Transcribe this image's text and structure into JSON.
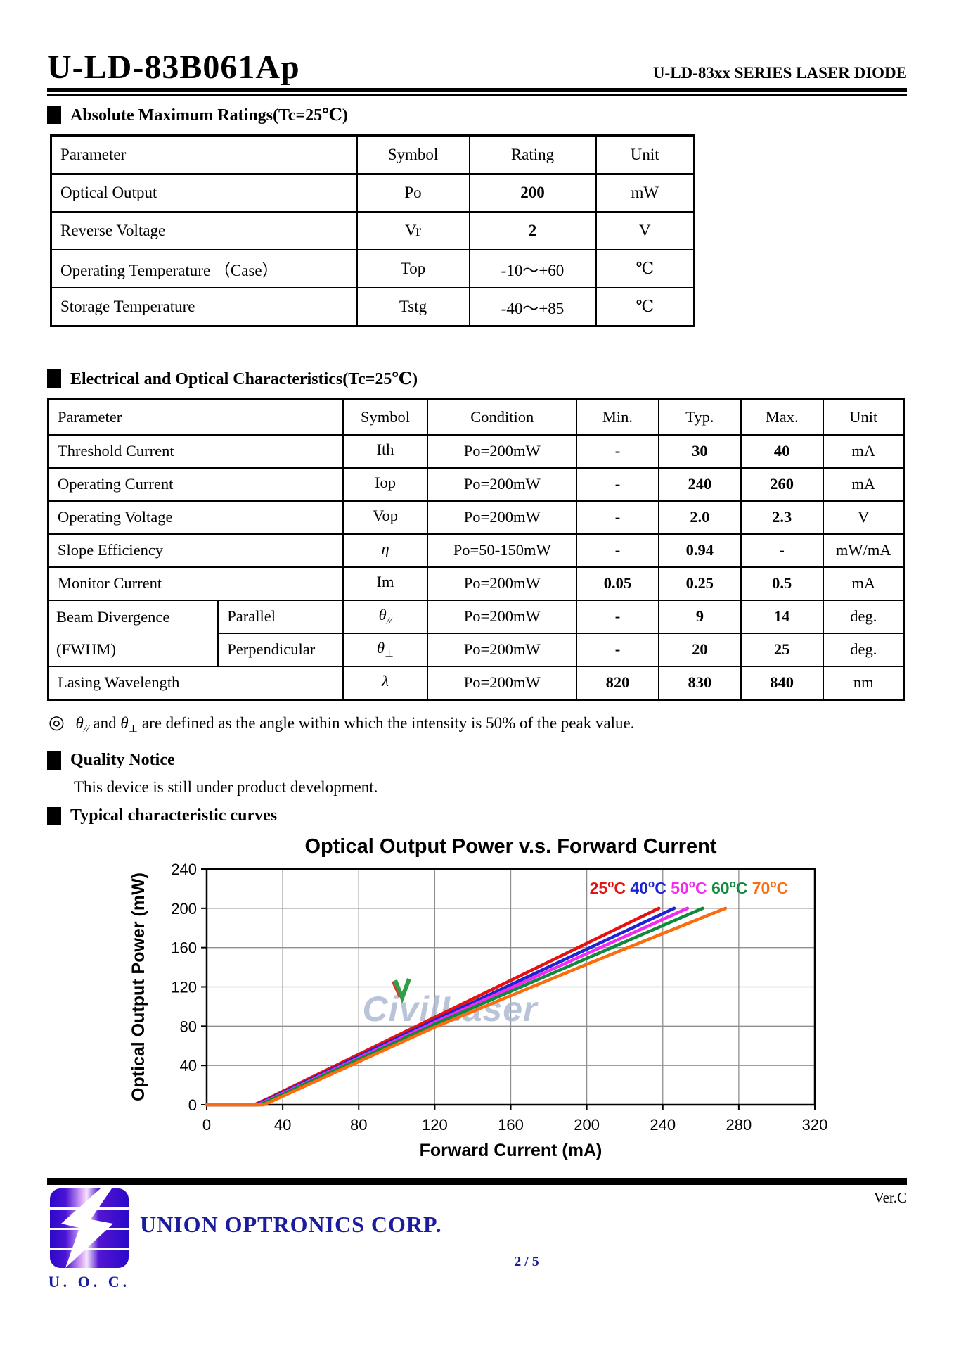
{
  "header": {
    "model": "U-LD-83B061Ap",
    "series_title": "U-LD-83xx SERIES LASER DIODE"
  },
  "sections": {
    "abs_max": "Absolute Maximum Ratings(Tc=25℃)",
    "eo_char": "Electrical and Optical Characteristics(Tc=25℃)",
    "quality_notice": "Quality Notice",
    "quality_text": "This device is still under product development.",
    "curves": "Typical characteristic curves"
  },
  "abs_table": {
    "headers": [
      "Parameter",
      "Symbol",
      "Rating",
      "Unit"
    ],
    "rows": [
      [
        "Optical Output",
        "Po",
        "200",
        "mW"
      ],
      [
        "Reverse Voltage",
        "Vr",
        "2",
        "V"
      ],
      [
        "Operating Temperature （Case）",
        "Top",
        "-10～+60",
        "℃"
      ],
      [
        "Storage Temperature",
        "Tstg",
        "-40～+85",
        "℃"
      ]
    ]
  },
  "eo_table": {
    "headers": [
      "Parameter",
      "Symbol",
      "Condition",
      "Min.",
      "Typ.",
      "Max.",
      "Unit"
    ],
    "rows": [
      {
        "param": "Threshold Current",
        "sym": "Ith",
        "sym_sub": "",
        "cond": "Po=200mW",
        "min": "-",
        "typ": "30",
        "max": "40",
        "unit": "mA"
      },
      {
        "param": "Operating Current",
        "sym": "Iop",
        "sym_sub": "",
        "cond": "Po=200mW",
        "min": "-",
        "typ": "240",
        "max": "260",
        "unit": "mA"
      },
      {
        "param": "Operating Voltage",
        "sym": "Vop",
        "sym_sub": "",
        "cond": "Po=200mW",
        "min": "-",
        "typ": "2.0",
        "max": "2.3",
        "unit": "V"
      },
      {
        "param": "Slope Efficiency",
        "sym": "η",
        "sym_sub": "",
        "cond": "Po=50-150mW",
        "min": "-",
        "typ": "0.94",
        "max": "-",
        "unit": "mW/mA"
      },
      {
        "param": "Monitor Current",
        "sym": "Im",
        "sym_sub": "",
        "cond": "Po=200mW",
        "min": "0.05",
        "typ": "0.25",
        "max": "0.5",
        "unit": "mA"
      },
      {
        "param": "Beam Divergence",
        "sub_param": "Parallel",
        "sym": "θ",
        "sym_sub": "//",
        "cond": "Po=200mW",
        "min": "-",
        "typ": "9",
        "max": "14",
        "unit": "deg."
      },
      {
        "param": "(FWHM)",
        "sub_param": "Perpendicular",
        "sym": "θ",
        "sym_sub": "⊥",
        "cond": "Po=200mW",
        "min": "-",
        "typ": "20",
        "max": "25",
        "unit": "deg."
      },
      {
        "param": "Lasing Wavelength",
        "sym": "λ",
        "sym_sub": "",
        "cond": "Po=200mW",
        "min": "820",
        "typ": "830",
        "max": "840",
        "unit": "nm"
      }
    ]
  },
  "note": {
    "bullet": "◎",
    "theta": "θ",
    "par_sub": "//",
    "mid": " and ",
    "perp_sub": "⊥",
    "text": " are defined as the angle within which the intensity is 50% of the peak value."
  },
  "chart_data": {
    "type": "line",
    "title": "Optical Output Power v.s. Forward Current",
    "xlabel": "Forward Current (mA)",
    "ylabel": "Optical Output Power (mW)",
    "xlim": [
      0,
      320
    ],
    "ylim": [
      0,
      240
    ],
    "xticks": [
      0,
      40,
      80,
      120,
      160,
      200,
      240,
      280,
      320
    ],
    "yticks": [
      0,
      40,
      80,
      120,
      160,
      200,
      240
    ],
    "grid": true,
    "legend_position": "top-right",
    "watermark": "CivilLaser",
    "watermark_color": "#a9b6cf",
    "series": [
      {
        "name": "25°C",
        "color": "#e81112",
        "points": [
          [
            0,
            0
          ],
          [
            25,
            0
          ],
          [
            32,
            6
          ],
          [
            120,
            89
          ],
          [
            238,
            200
          ]
        ]
      },
      {
        "name": "40°C",
        "color": "#1c24d4",
        "points": [
          [
            0,
            0
          ],
          [
            26,
            0
          ],
          [
            33,
            6
          ],
          [
            120,
            86
          ],
          [
            246,
            200
          ]
        ]
      },
      {
        "name": "50°C",
        "color": "#f32af0",
        "points": [
          [
            0,
            0
          ],
          [
            27,
            0
          ],
          [
            34,
            6
          ],
          [
            120,
            84
          ],
          [
            253,
            200
          ]
        ]
      },
      {
        "name": "60°C",
        "color": "#0f8a3c",
        "points": [
          [
            0,
            0
          ],
          [
            28,
            0
          ],
          [
            35,
            6
          ],
          [
            120,
            82
          ],
          [
            261,
            200
          ]
        ]
      },
      {
        "name": "70°C",
        "color": "#fb6c0e",
        "points": [
          [
            0,
            0
          ],
          [
            30,
            0
          ],
          [
            37,
            6
          ],
          [
            120,
            79
          ],
          [
            200,
            143
          ],
          [
            273,
            200
          ]
        ]
      }
    ]
  },
  "footer": {
    "version": "Ver.C",
    "company": "UNION OPTRONICS CORP.",
    "page": "2 / 5",
    "logo_caption": "U. O. C.",
    "accent_color": "#1b1b9e"
  }
}
